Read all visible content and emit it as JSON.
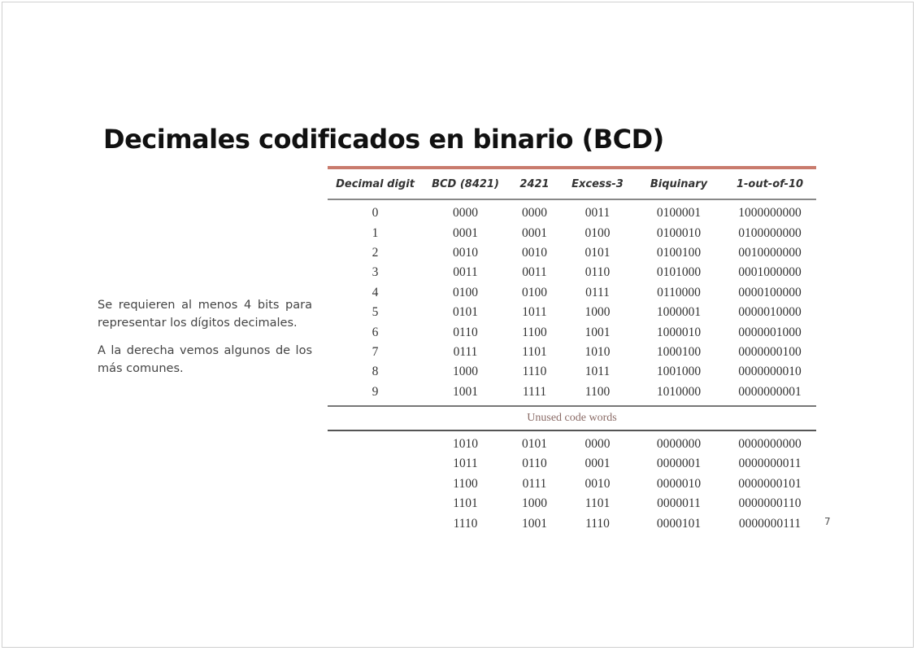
{
  "slide": {
    "title": "Decimales codificados en binario (BCD)",
    "paragraphs": [
      "Se requieren al menos 4 bits para representar los dígitos decimales.",
      "A la derecha vemos algunos de los más comunes."
    ],
    "page_number": "7"
  },
  "table": {
    "headers": [
      "Decimal digit",
      "BCD (8421)",
      "2421",
      "Excess-3",
      "Biquinary",
      "1-out-of-10"
    ],
    "rows": [
      [
        "0",
        "0000",
        "0000",
        "0011",
        "0100001",
        "1000000000"
      ],
      [
        "1",
        "0001",
        "0001",
        "0100",
        "0100010",
        "0100000000"
      ],
      [
        "2",
        "0010",
        "0010",
        "0101",
        "0100100",
        "0010000000"
      ],
      [
        "3",
        "0011",
        "0011",
        "0110",
        "0101000",
        "0001000000"
      ],
      [
        "4",
        "0100",
        "0100",
        "0111",
        "0110000",
        "0000100000"
      ],
      [
        "5",
        "0101",
        "1011",
        "1000",
        "1000001",
        "0000010000"
      ],
      [
        "6",
        "0110",
        "1100",
        "1001",
        "1000010",
        "0000001000"
      ],
      [
        "7",
        "0111",
        "1101",
        "1010",
        "1000100",
        "0000000100"
      ],
      [
        "8",
        "1000",
        "1110",
        "1011",
        "1001000",
        "0000000010"
      ],
      [
        "9",
        "1001",
        "1111",
        "1100",
        "1010000",
        "0000000001"
      ]
    ],
    "unused_label": "Unused code words",
    "unused_rows": [
      [
        "",
        "1010",
        "0101",
        "0000",
        "0000000",
        "0000000000"
      ],
      [
        "",
        "1011",
        "0110",
        "0001",
        "0000001",
        "0000000011"
      ],
      [
        "",
        "1100",
        "0111",
        "0010",
        "0000010",
        "0000000101"
      ],
      [
        "",
        "1101",
        "1000",
        "1101",
        "0000011",
        "0000000110"
      ],
      [
        "",
        "1110",
        "1001",
        "1110",
        "0000101",
        "0000000111"
      ]
    ]
  }
}
